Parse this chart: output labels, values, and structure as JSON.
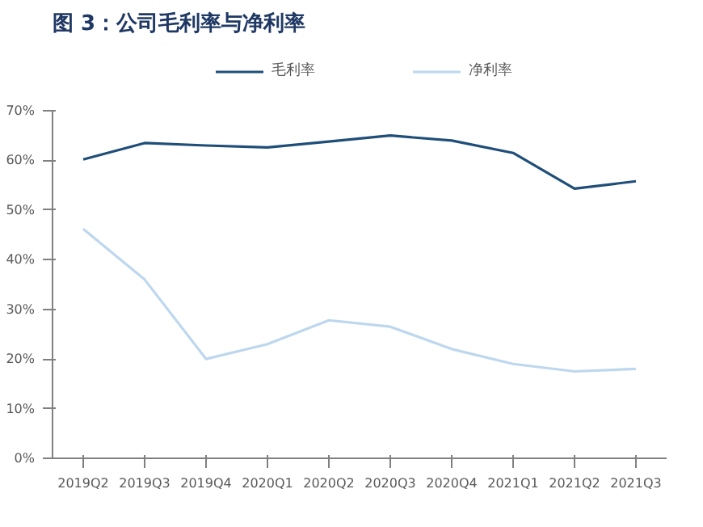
{
  "chart_data": {
    "type": "line",
    "title": "图 3：公司毛利率与净利率",
    "categories": [
      "2019Q2",
      "2019Q3",
      "2019Q4",
      "2020Q1",
      "2020Q2",
      "2020Q3",
      "2020Q4",
      "2021Q1",
      "2021Q2",
      "2021Q3"
    ],
    "series": [
      {
        "name": "毛利率",
        "color": "#1f4e79",
        "values": [
          60.2,
          63.5,
          63.0,
          62.6,
          63.8,
          65.0,
          64.0,
          61.5,
          54.3,
          55.8
        ]
      },
      {
        "name": "净利率",
        "color": "#bdd7ee",
        "values": [
          46.2,
          36.0,
          20.0,
          23.0,
          27.8,
          26.5,
          22.0,
          19.0,
          17.5,
          18.0
        ]
      }
    ],
    "ylim": [
      0,
      70
    ],
    "yticks": [
      {
        "value": 0,
        "label": "0%"
      },
      {
        "value": 10,
        "label": "10%"
      },
      {
        "value": 20,
        "label": "20%"
      },
      {
        "value": 30,
        "label": "30%"
      },
      {
        "value": 40,
        "label": "40%"
      },
      {
        "value": 50,
        "label": "50%"
      },
      {
        "value": 60,
        "label": "60%"
      },
      {
        "value": 70,
        "label": "70%"
      }
    ],
    "grid": false,
    "legend": "top",
    "marker": "none",
    "line_style": "solid"
  }
}
